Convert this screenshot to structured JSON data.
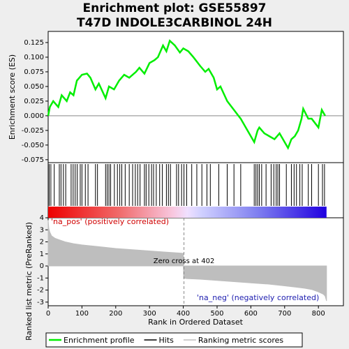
{
  "chart_data": [
    {
      "type": "line",
      "title": "Enrichment plot: GSE55897 T47D INDOLE3CARBINOL 24H",
      "y_label": "Enrichment score (ES)",
      "xlim": [
        0,
        874
      ],
      "ylim": [
        -0.08,
        0.144
      ],
      "yticks": [
        0.125,
        {
          "value": 0.1,
          "label": "0.100"
        },
        0.075,
        {
          "value": 0.05,
          "label": "0.050"
        },
        0.025,
        {
          "value": 0,
          "label": "0.000"
        },
        -0.025,
        {
          "value": -0.05,
          "label": "-0.050"
        },
        -0.075
      ],
      "series": [
        {
          "name": "Enrichment profile",
          "color": "#00ee00",
          "x": [
            0,
            5,
            15,
            30,
            40,
            55,
            65,
            75,
            85,
            100,
            115,
            125,
            140,
            150,
            170,
            180,
            195,
            210,
            225,
            240,
            260,
            270,
            285,
            300,
            315,
            325,
            340,
            350,
            360,
            375,
            390,
            400,
            415,
            430,
            450,
            465,
            475,
            490,
            500,
            510,
            530,
            550,
            570,
            590,
            610,
            620,
            625,
            640,
            655,
            670,
            685,
            700,
            710,
            720,
            730,
            740,
            750,
            755,
            770,
            780,
            800,
            810,
            820
          ],
          "values": [
            0,
            0.015,
            0.025,
            0.015,
            0.035,
            0.025,
            0.04,
            0.035,
            0.06,
            0.07,
            0.072,
            0.065,
            0.045,
            0.055,
            0.03,
            0.05,
            0.045,
            0.06,
            0.07,
            0.065,
            0.075,
            0.082,
            0.072,
            0.09,
            0.095,
            0.1,
            0.12,
            0.11,
            0.128,
            0.12,
            0.108,
            0.115,
            0.11,
            0.1,
            0.085,
            0.075,
            0.08,
            0.065,
            0.045,
            0.05,
            0.025,
            0.01,
            -0.005,
            -0.025,
            -0.045,
            -0.025,
            -0.02,
            -0.03,
            -0.035,
            -0.04,
            -0.03,
            -0.045,
            -0.055,
            -0.04,
            -0.035,
            -0.025,
            -0.005,
            0.012,
            -0.005,
            -0.005,
            -0.02,
            0.01,
            0
          ]
        }
      ]
    },
    {
      "type": "hits",
      "xlim": [
        0,
        874
      ],
      "series": [
        {
          "name": "Hits",
          "color": "#000000",
          "x": [
            3,
            8,
            18,
            33,
            38,
            45,
            52,
            68,
            74,
            80,
            86,
            95,
            100,
            110,
            118,
            140,
            146,
            170,
            175,
            180,
            185,
            196,
            205,
            212,
            218,
            228,
            240,
            250,
            258,
            265,
            272,
            285,
            290,
            298,
            306,
            312,
            320,
            330,
            338,
            350,
            356,
            362,
            380,
            386,
            395,
            402,
            410,
            425,
            440,
            455,
            470,
            480,
            505,
            530,
            550,
            570,
            610,
            615,
            620,
            625,
            632,
            645,
            660,
            668,
            675,
            680,
            685,
            705,
            720,
            728,
            735,
            745,
            752,
            770,
            780,
            800,
            812,
            818
          ]
        }
      ]
    },
    {
      "type": "area",
      "y_label": "Ranked list metric (PreRanked)",
      "x_label": "Rank in Ordered Dataset",
      "xlim": [
        0,
        874
      ],
      "ylim": [
        -3.3,
        4
      ],
      "xticks": [
        0,
        100,
        200,
        300,
        400,
        500,
        600,
        700,
        800
      ],
      "yticks": [
        4,
        3,
        2,
        1,
        0,
        -1,
        -2,
        -3
      ],
      "zero_cross": 402,
      "annotations": [
        "'na_pos' (positively correlated)",
        "Zero cross at 402",
        "'na_neg' (negatively correlated)"
      ],
      "series": [
        {
          "name": "Ranking metric scores",
          "color": "#bebebe",
          "x": [
            0,
            2,
            5,
            10,
            20,
            35,
            50,
            75,
            100,
            150,
            200,
            250,
            300,
            350,
            400,
            401,
            410,
            450,
            500,
            550,
            600,
            650,
            700,
            740,
            760,
            780,
            800,
            815,
            820,
            824
          ],
          "values": [
            3.8,
            3.1,
            2.8,
            2.5,
            2.3,
            2.15,
            2.0,
            1.85,
            1.75,
            1.6,
            1.45,
            1.35,
            1.25,
            1.15,
            1.05,
            -1.0,
            -1.05,
            -1.1,
            -1.2,
            -1.3,
            -1.4,
            -1.5,
            -1.65,
            -1.78,
            -1.85,
            -1.95,
            -2.15,
            -2.35,
            -2.5,
            -2.9
          ]
        }
      ]
    }
  ]
}
